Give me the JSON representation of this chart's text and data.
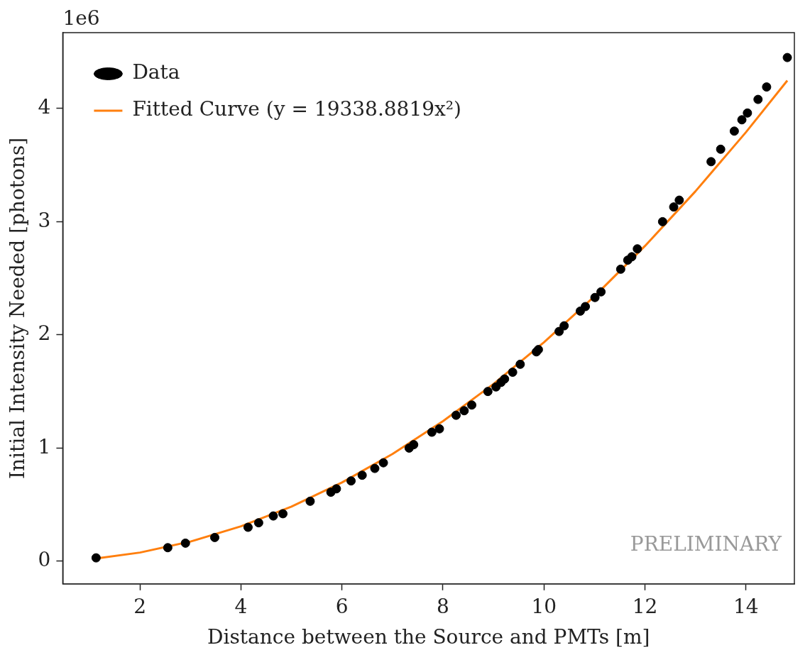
{
  "chart_data": {
    "type": "scatter",
    "xlabel": "Distance between the Source and PMTs [m]",
    "ylabel": "Initial Intensity Needed [photons]",
    "annotations": [
      "1e6",
      "PRELIMINARY"
    ],
    "xlim": [
      0.47,
      14.96
    ],
    "xticks": [
      2,
      4,
      6,
      8,
      10,
      12,
      14
    ],
    "ylim": [
      -0.2,
      4.67
    ],
    "yticks": [
      0,
      1,
      2,
      3,
      4
    ],
    "legend": "top left",
    "series": [
      {
        "name": "Data",
        "marker": "circle",
        "color": "#000000",
        "x": [
          1.13,
          2.55,
          2.9,
          3.48,
          4.14,
          4.35,
          4.64,
          4.83,
          5.37,
          5.78,
          5.89,
          6.18,
          6.4,
          6.65,
          6.82,
          7.33,
          7.42,
          7.78,
          7.93,
          8.26,
          8.42,
          8.57,
          8.89,
          9.05,
          9.15,
          9.22,
          9.38,
          9.53,
          9.85,
          9.89,
          10.3,
          10.4,
          10.72,
          10.82,
          11.01,
          11.13,
          11.52,
          11.66,
          11.74,
          11.85,
          12.35,
          12.57,
          12.68,
          13.31,
          13.5,
          13.77,
          13.92,
          14.03,
          14.24,
          14.41,
          14.82
        ],
        "values": [
          0.03,
          0.12,
          0.16,
          0.21,
          0.3,
          0.34,
          0.4,
          0.42,
          0.53,
          0.61,
          0.64,
          0.71,
          0.76,
          0.82,
          0.87,
          1.0,
          1.03,
          1.14,
          1.17,
          1.29,
          1.33,
          1.38,
          1.5,
          1.54,
          1.58,
          1.61,
          1.67,
          1.74,
          1.85,
          1.87,
          2.03,
          2.08,
          2.21,
          2.25,
          2.33,
          2.38,
          2.58,
          2.66,
          2.69,
          2.76,
          3.0,
          3.13,
          3.19,
          3.53,
          3.64,
          3.8,
          3.9,
          3.96,
          4.08,
          4.19,
          4.45
        ]
      },
      {
        "name": "Fitted Curve (y = 19338.8819x²)",
        "type": "line",
        "marker": "none",
        "color": "#ff7f0e",
        "x": [
          1.13,
          2,
          3,
          4,
          5,
          6,
          7,
          8,
          9,
          10,
          11,
          12,
          13,
          14,
          14.82
        ],
        "values": [
          0.025,
          0.077,
          0.174,
          0.309,
          0.483,
          0.696,
          0.948,
          1.238,
          1.566,
          1.934,
          2.34,
          2.785,
          3.268,
          3.79,
          4.247
        ]
      }
    ]
  }
}
